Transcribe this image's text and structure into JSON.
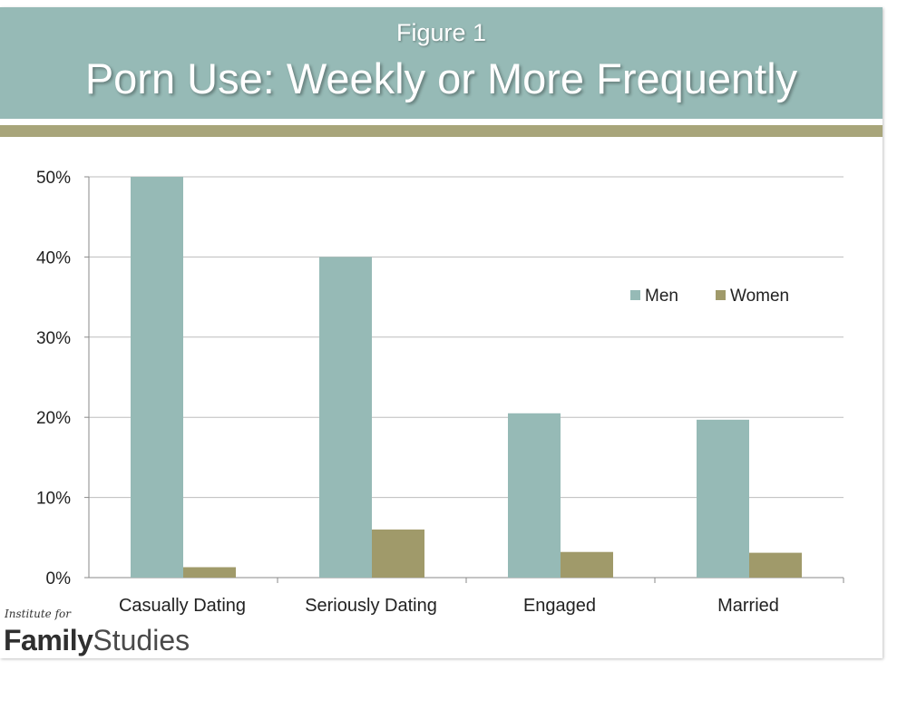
{
  "header": {
    "figure_label": "Figure 1",
    "title": "Porn Use: Weekly or More Frequently"
  },
  "logo": {
    "institute_text": "Institute for",
    "family_text": "Family",
    "studies_text": "Studies"
  },
  "colors": {
    "header_bg": "#96bab6",
    "accent_bar": "#a8a57a",
    "men": "#96bab6",
    "women": "#a09a6a"
  },
  "chart_data": {
    "type": "bar",
    "categories": [
      "Casually Dating",
      "Seriously Dating",
      "Engaged",
      "Married"
    ],
    "series": [
      {
        "name": "Men",
        "values": [
          50,
          40,
          20.5,
          19.7
        ]
      },
      {
        "name": "Women",
        "values": [
          1.3,
          6,
          3.2,
          3.1
        ]
      }
    ],
    "yticks": [
      "0%",
      "10%",
      "20%",
      "30%",
      "40%",
      "50%"
    ],
    "ylim": [
      0,
      50
    ],
    "grid": true,
    "legend_position": "top-right"
  }
}
